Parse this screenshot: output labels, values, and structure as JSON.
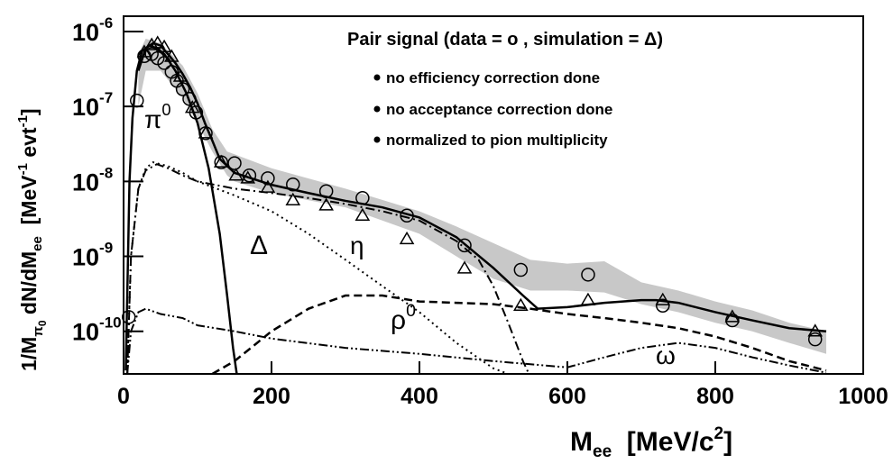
{
  "chart_data": {
    "type": "line",
    "title": "Pair signal   (data = o , simulation = Δ)",
    "notes": [
      "no efficiency correction done",
      "no acceptance correction done",
      "normalized to pion multiplicity"
    ],
    "xlabel_parts": [
      "M",
      "ee",
      "  [MeV/c",
      "2",
      "]"
    ],
    "ylabel_parts": [
      "1/M",
      "π",
      "0",
      " dN/dM",
      "ee",
      "  [MeV",
      "-1",
      " evt",
      "-1",
      "]"
    ],
    "xlim": [
      0,
      1000
    ],
    "ylim": [
      2.7e-11,
      1.6e-06
    ],
    "ylog": true,
    "xticks": [
      0,
      200,
      400,
      600,
      800,
      1000
    ],
    "yticks": [
      {
        "value": 1e-10,
        "label": "10",
        "exponent": "-10"
      },
      {
        "value": 1e-09,
        "label": "10",
        "exponent": "-9"
      },
      {
        "value": 1e-08,
        "label": "10",
        "exponent": "-8"
      },
      {
        "value": 1e-07,
        "label": "10",
        "exponent": "-7"
      },
      {
        "value": 1e-06,
        "label": "10",
        "exponent": "-6"
      }
    ],
    "band": {
      "color": "#c8c8c8",
      "x": [
        20,
        30,
        50,
        80,
        100,
        120,
        140,
        150,
        200,
        300,
        400,
        450,
        500,
        550,
        600,
        650,
        700,
        750,
        800,
        850,
        900,
        950
      ],
      "low": [
        1e-07,
        3e-07,
        3e-07,
        1.3e-07,
        6e-08,
        2.5e-08,
        1.2e-08,
        1e-08,
        7e-09,
        4.5e-09,
        2e-09,
        1e-09,
        5e-10,
        3.5e-10,
        3.5e-10,
        3.3e-10,
        2.3e-10,
        1.8e-10,
        1.3e-10,
        1e-10,
        7e-11,
        5e-11
      ],
      "high": [
        5e-07,
        8e-07,
        7e-07,
        3.5e-07,
        1.5e-07,
        5e-08,
        2.5e-08,
        2.3e-08,
        1.5e-08,
        8e-09,
        4e-09,
        2.5e-09,
        1.5e-09,
        9e-10,
        8e-10,
        8.6e-10,
        4.5e-10,
        3.5e-10,
        2.5e-10,
        1.9e-10,
        1.3e-10,
        1e-10
      ]
    },
    "series": [
      {
        "style": "solid",
        "width": 2.5,
        "color": "#000000",
        "x": [
          20,
          30,
          40,
          50,
          60,
          70,
          80,
          90,
          100,
          110,
          120,
          130,
          150,
          200,
          250,
          300,
          350,
          400,
          450,
          500,
          540,
          560,
          600,
          650,
          700,
          720,
          750,
          800,
          850,
          900,
          950
        ],
        "values": [
          3e-07,
          6e-07,
          7e-07,
          6.5e-07,
          5e-07,
          3.8e-07,
          2.7e-07,
          1.8e-07,
          1.1e-07,
          6e-08,
          3.5e-08,
          2e-08,
          1.3e-08,
          9e-09,
          7e-09,
          5.5e-09,
          4.5e-09,
          3.3e-09,
          1.8e-09,
          7e-10,
          3e-10,
          2e-10,
          2.1e-10,
          2.4e-10,
          2.6e-10,
          2.6e-10,
          2.4e-10,
          1.8e-10,
          1.4e-10,
          1.1e-10,
          1e-10
        ]
      },
      {
        "style": "solid",
        "width": 2.5,
        "color": "#000000",
        "x": [
          3,
          8,
          12,
          18,
          25,
          35,
          45,
          55,
          70,
          85,
          100,
          115,
          130,
          140,
          148,
          153
        ],
        "values": [
          3e-11,
          1e-08,
          7e-08,
          3e-07,
          5.5e-07,
          6.5e-07,
          6e-07,
          5e-07,
          3e-07,
          1.5e-07,
          6e-08,
          1.5e-08,
          2e-09,
          3e-10,
          6e-11,
          2.7e-11
        ]
      },
      {
        "style": "dotted",
        "width": 2,
        "color": "#000000",
        "x": [
          5,
          10,
          20,
          30,
          40,
          60,
          80,
          100,
          150,
          200,
          250,
          300,
          350,
          400,
          450,
          500,
          520
        ],
        "values": [
          2.7e-11,
          1e-09,
          8e-09,
          1.5e-08,
          1.8e-08,
          1.6e-08,
          1.3e-08,
          1e-08,
          6.5e-09,
          4e-09,
          2e-09,
          9e-10,
          4e-10,
          1.8e-10,
          7e-11,
          3.2e-11,
          2.7e-11
        ]
      },
      {
        "style": "dashdot",
        "width": 2,
        "color": "#000000",
        "x": [
          5,
          10,
          20,
          30,
          45,
          60,
          80,
          100,
          150,
          200,
          250,
          300,
          350,
          400,
          450,
          480,
          500,
          520,
          540,
          548
        ],
        "values": [
          2.7e-11,
          1e-09,
          8e-09,
          1.4e-08,
          1.7e-08,
          1.5e-08,
          1.2e-08,
          1e-08,
          8e-09,
          7e-09,
          6e-09,
          5e-09,
          4e-09,
          3e-09,
          1.6e-09,
          9e-10,
          4e-10,
          1.3e-10,
          4e-11,
          2.7e-11
        ]
      },
      {
        "style": "dashed",
        "width": 2.5,
        "color": "#000000",
        "x": [
          120,
          150,
          200,
          250,
          300,
          350,
          400,
          450,
          500,
          550,
          600,
          650,
          700,
          750,
          800,
          850,
          900,
          950
        ],
        "values": [
          2.7e-11,
          4e-11,
          1e-10,
          2e-10,
          3e-10,
          3e-10,
          2.5e-10,
          2.4e-10,
          2.3e-10,
          2e-10,
          1.7e-10,
          1.5e-10,
          1.3e-10,
          1.1e-10,
          8.5e-11,
          6e-11,
          4e-11,
          3e-11
        ]
      },
      {
        "style": "dashdotdot",
        "width": 2,
        "color": "#000000",
        "x": [
          5,
          10,
          20,
          30,
          50,
          80,
          100,
          150,
          200,
          300,
          400,
          500,
          600,
          650,
          700,
          750,
          800,
          850,
          900,
          950
        ],
        "values": [
          2.7e-11,
          1e-10,
          1.8e-10,
          2e-10,
          1.7e-10,
          1.5e-10,
          1.2e-10,
          1e-10,
          8e-11,
          6e-11,
          5e-11,
          4e-11,
          3.3e-11,
          4.5e-11,
          6e-11,
          7e-11,
          6e-11,
          4.5e-11,
          3.5e-11,
          2.8e-11
        ]
      },
      {
        "style": "none",
        "marker": "circle",
        "color": "#000000",
        "x": [
          7,
          18,
          28,
          38,
          46,
          55,
          65,
          72,
          80,
          89,
          98,
          111,
          132,
          150,
          170,
          195,
          229,
          274,
          323,
          383,
          461,
          537,
          628,
          729,
          823,
          935
        ],
        "values": [
          1.55e-10,
          1.2e-07,
          4.7e-07,
          5e-07,
          4.4e-07,
          3.8e-07,
          2.9e-07,
          2.2e-07,
          1.7e-07,
          1.26e-07,
          8.3e-08,
          4.4e-08,
          1.8e-08,
          1.75e-08,
          1.2e-08,
          1.1e-08,
          9.1e-09,
          7.4e-09,
          6e-09,
          3.5e-09,
          1.4e-09,
          6.6e-10,
          5.7e-10,
          2.2e-10,
          1.4e-10,
          7.8e-11
        ]
      },
      {
        "style": "none",
        "marker": "triangle",
        "color": "#000000",
        "x": [
          28,
          38,
          46,
          55,
          65,
          77,
          93,
          111,
          132,
          152,
          168,
          195,
          229,
          274,
          323,
          383,
          461,
          537,
          628,
          729,
          823,
          935
        ],
        "values": [
          5.3e-07,
          6.6e-07,
          7e-07,
          6.2e-07,
          4.6e-07,
          2.5e-07,
          9.6e-08,
          4.4e-08,
          1.8e-08,
          1.2e-08,
          1.1e-08,
          8.3e-09,
          5.6e-09,
          4.8e-09,
          3.5e-09,
          1.7e-09,
          6.9e-10,
          2.2e-10,
          2.6e-10,
          2.6e-10,
          1.55e-10,
          1e-10
        ]
      }
    ],
    "annotations": [
      {
        "text": "π",
        "sup": "0"
      },
      {
        "text": "Δ"
      },
      {
        "text": "η"
      },
      {
        "text": "ρ",
        "sup": "0"
      },
      {
        "text": "ω"
      }
    ]
  }
}
